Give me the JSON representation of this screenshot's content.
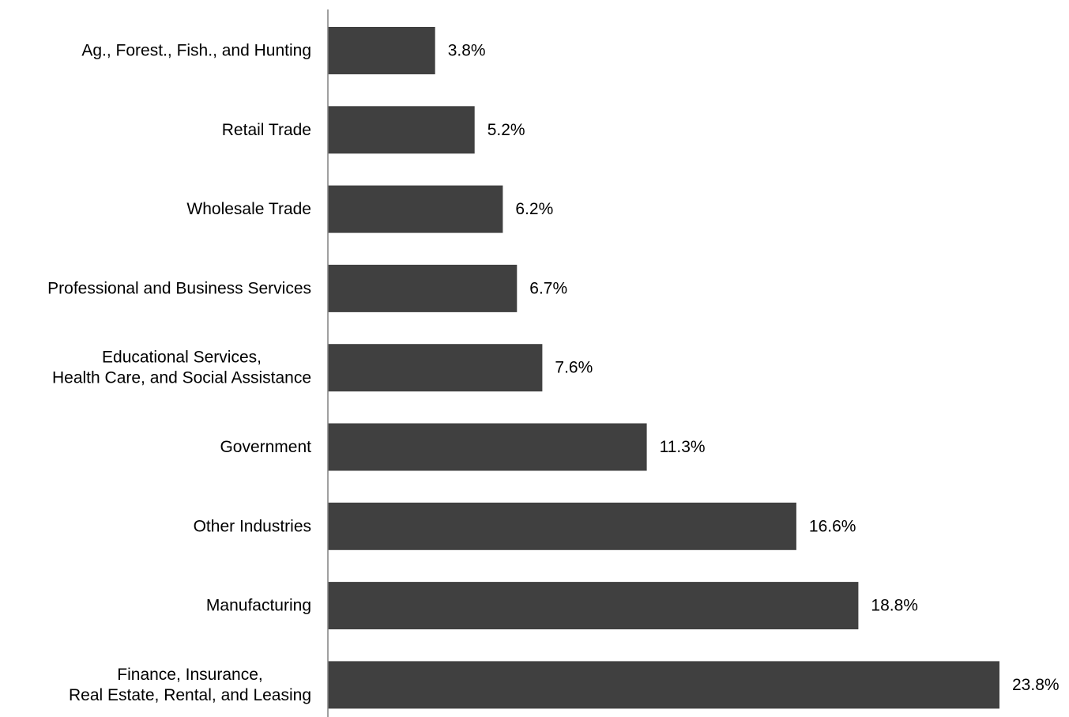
{
  "chart_data": {
    "type": "bar",
    "orientation": "horizontal",
    "categories": [
      [
        "Ag., Forest., Fish., and Hunting"
      ],
      [
        "Retail Trade"
      ],
      [
        "Wholesale Trade"
      ],
      [
        "Professional and Business Services"
      ],
      [
        "Educational Services,",
        "Health Care, and Social Assistance"
      ],
      [
        "Government"
      ],
      [
        "Other Industries"
      ],
      [
        "Manufacturing"
      ],
      [
        "Finance, Insurance,",
        "Real Estate, Rental, and Leasing"
      ]
    ],
    "values": [
      3.8,
      5.2,
      6.2,
      6.7,
      7.6,
      11.3,
      16.6,
      18.8,
      23.8
    ],
    "value_labels": [
      "3.8%",
      "5.2%",
      "6.2%",
      "6.7%",
      "7.6%",
      "11.3%",
      "16.6%",
      "18.8%",
      "23.8%"
    ],
    "unit": "%",
    "xlim": [
      0,
      23.8
    ],
    "grid": false,
    "legend": "none",
    "colors": {
      "bar": "#404040",
      "axis": "#808080",
      "text": "#000000"
    }
  }
}
